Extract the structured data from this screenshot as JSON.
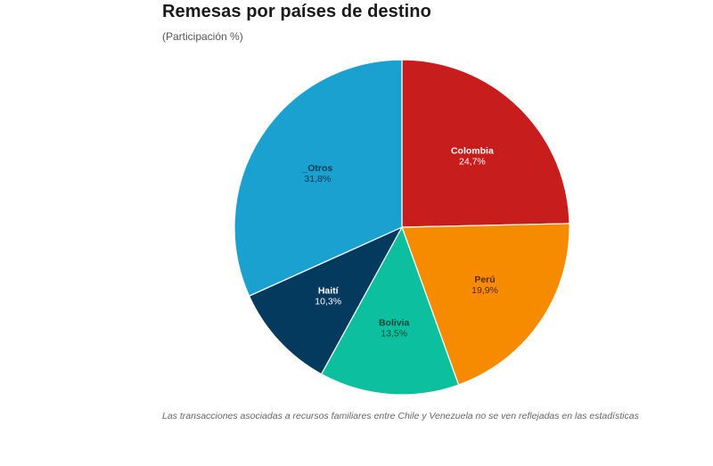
{
  "title": "Remesas por países de destino",
  "subtitle": "(Participación %)",
  "note": "Las transacciones asociadas a recursos familiares entre Chile y Venezuela no se ven reflejadas en las estadísticas",
  "chart_data": {
    "type": "pie",
    "title": "Remesas por países de destino",
    "subtitle": "(Participación %)",
    "categories": [
      "Colombia",
      "Perú",
      "Bolivia",
      "Haití",
      "_Otros"
    ],
    "values": [
      24.7,
      19.9,
      13.5,
      10.3,
      31.8
    ],
    "value_labels": [
      "24,7%",
      "19,9%",
      "13,5%",
      "10,3%",
      "31,8%"
    ],
    "colors": [
      "#c71d1d",
      "#f78b00",
      "#0bbf9f",
      "#033a5e",
      "#1aa1cf"
    ],
    "label_colors": [
      "#ffffff",
      "#5a2a00",
      "#0a4a3e",
      "#ffffff",
      "#0b3a55"
    ],
    "start_angle": "12 o'clock",
    "direction": "clockwise",
    "legend": "none (inline labels)",
    "footnote": "Las transacciones asociadas a recursos familiares entre Chile y Venezuela no se ven reflejadas en las estadísticas"
  }
}
